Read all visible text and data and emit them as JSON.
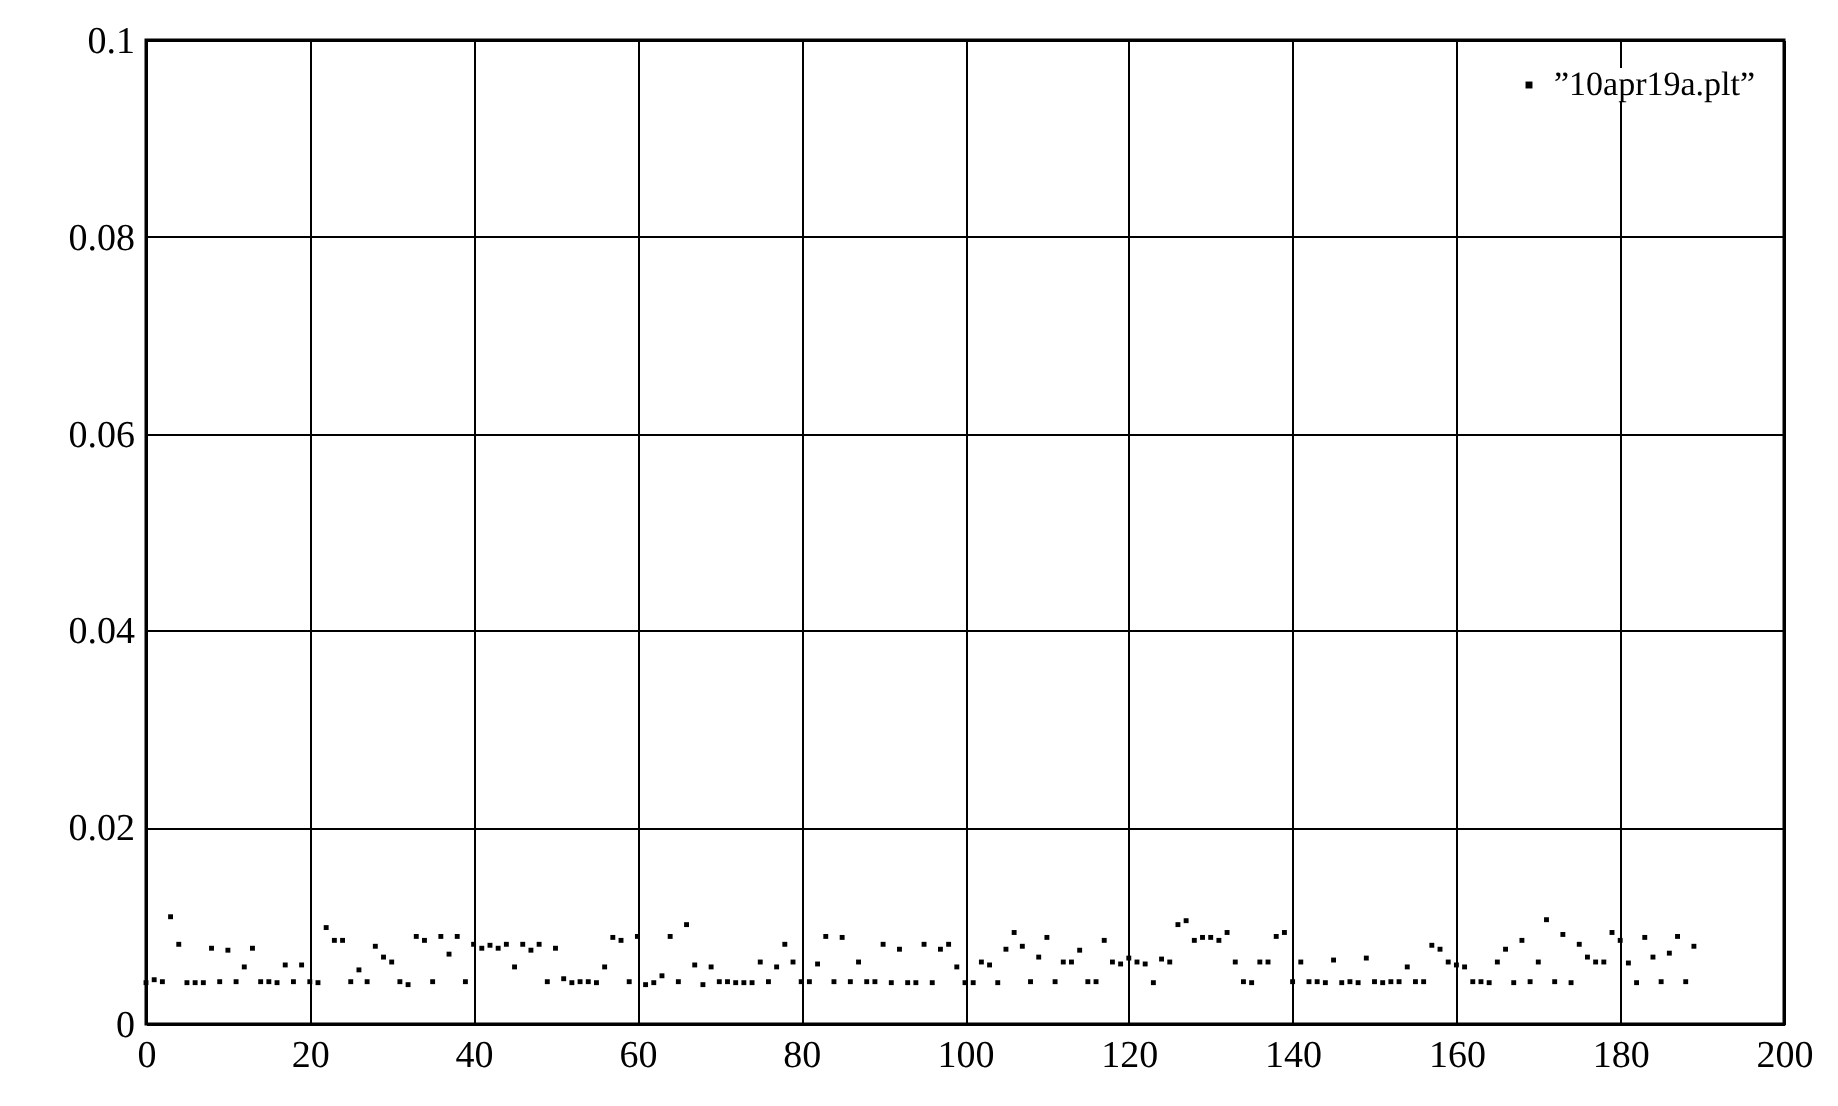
{
  "chart_data": {
    "type": "scatter",
    "x": [
      0,
      1,
      2,
      3,
      4,
      5,
      6,
      7,
      8,
      9,
      10,
      11,
      12,
      13,
      14,
      15,
      16,
      17,
      18,
      19,
      20,
      21,
      22,
      23,
      24,
      25,
      26,
      27,
      28,
      29,
      30,
      31,
      32,
      33,
      34,
      35,
      36,
      37,
      38,
      39,
      40,
      41,
      42,
      43,
      44,
      45,
      46,
      47,
      48,
      49,
      50,
      51,
      52,
      53,
      54,
      55,
      56,
      57,
      58,
      59,
      60,
      61,
      62,
      63,
      64,
      65,
      66,
      67,
      68,
      69,
      70,
      71,
      72,
      73,
      74,
      75,
      76,
      77,
      78,
      79,
      80,
      81,
      82,
      83,
      84,
      85,
      86,
      87,
      88,
      89,
      90,
      91,
      92,
      93,
      94,
      95,
      96,
      97,
      98,
      99,
      100,
      101,
      102,
      103,
      104,
      105,
      106,
      107,
      108,
      109,
      110,
      111,
      112,
      113,
      114,
      115,
      116,
      117,
      118,
      119,
      120,
      121,
      122,
      123,
      124,
      125,
      126,
      127,
      128,
      129,
      130,
      131,
      132,
      133,
      134,
      135,
      136,
      137,
      138,
      139,
      140,
      141,
      142,
      143,
      144,
      145,
      146,
      147,
      148,
      149,
      150,
      151,
      152,
      153,
      154,
      155,
      156,
      157,
      158,
      159,
      160,
      161,
      162,
      163,
      164,
      165,
      166,
      167,
      168,
      169,
      170,
      171,
      172,
      173,
      174,
      175,
      176,
      177,
      178,
      179,
      180,
      181,
      182,
      183,
      184,
      185,
      186,
      187,
      188,
      189
    ],
    "series": [
      {
        "name": "”10apr19a.plt”",
        "color": "#000000",
        "values": [
          0.0042,
          0.0045,
          0.0043,
          0.0109,
          0.0081,
          0.0042,
          0.0042,
          0.0042,
          0.0077,
          0.0043,
          0.0075,
          0.0043,
          0.0058,
          0.0077,
          0.0043,
          0.0043,
          0.0042,
          0.006,
          0.0043,
          0.006,
          0.0043,
          0.0042,
          0.0098,
          0.0085,
          0.0085,
          0.0043,
          0.0055,
          0.0043,
          0.0079,
          0.0068,
          0.0063,
          0.0043,
          0.004,
          0.0089,
          0.0085,
          0.0043,
          0.0089,
          0.0071,
          0.0089,
          0.0043,
          0.0081,
          0.0077,
          0.008,
          0.0077,
          0.0081,
          0.0058,
          0.0081,
          0.0075,
          0.0081,
          0.0043,
          0.0077,
          0.0046,
          0.0042,
          0.0043,
          0.0043,
          0.0042,
          0.0058,
          0.0088,
          0.0085,
          0.0043,
          0.0089,
          0.004,
          0.0042,
          0.0049,
          0.0089,
          0.0043,
          0.0101,
          0.006,
          0.004,
          0.0058,
          0.0043,
          0.0043,
          0.0042,
          0.0042,
          0.0042,
          0.0063,
          0.0043,
          0.0058,
          0.0081,
          0.0063,
          0.0043,
          0.0043,
          0.0061,
          0.0089,
          0.0043,
          0.0088,
          0.0043,
          0.0063,
          0.0043,
          0.0043,
          0.0081,
          0.0042,
          0.0076,
          0.0042,
          0.0042,
          0.0081,
          0.0042,
          0.0076,
          0.0081,
          0.0058,
          0.0042,
          0.0042,
          0.0063,
          0.006,
          0.0042,
          0.0076,
          0.0093,
          0.0079,
          0.0043,
          0.0068,
          0.0088,
          0.0043,
          0.0063,
          0.0063,
          0.0075,
          0.0043,
          0.0043,
          0.0085,
          0.0063,
          0.0061,
          0.0067,
          0.0063,
          0.0061,
          0.0042,
          0.0066,
          0.0063,
          0.0101,
          0.0105,
          0.0085,
          0.0088,
          0.0088,
          0.0085,
          0.0093,
          0.0063,
          0.0043,
          0.0042,
          0.0063,
          0.0063,
          0.0089,
          0.0093,
          0.0043,
          0.0063,
          0.0043,
          0.0043,
          0.0042,
          0.0065,
          0.0042,
          0.0043,
          0.0042,
          0.0067,
          0.0043,
          0.0042,
          0.0043,
          0.0043,
          0.0058,
          0.0043,
          0.0043,
          0.008,
          0.0076,
          0.0063,
          0.006,
          0.0058,
          0.0043,
          0.0043,
          0.0042,
          0.0063,
          0.0076,
          0.0042,
          0.0085,
          0.0043,
          0.0063,
          0.0106,
          0.0043,
          0.0091,
          0.0042,
          0.0081,
          0.0068,
          0.0063,
          0.0063,
          0.0093,
          0.0085,
          0.0062,
          0.0042,
          0.0088,
          0.0068,
          0.0043,
          0.0072,
          0.0089,
          0.0043,
          0.0079
        ]
      }
    ],
    "xlim": [
      0,
      200
    ],
    "xticks": [
      0,
      20,
      40,
      60,
      80,
      100,
      120,
      140,
      160,
      180,
      200
    ],
    "ylim": [
      0,
      0.1
    ],
    "yticks": [
      0,
      0.02,
      0.04,
      0.06,
      0.08,
      0.1
    ],
    "grid": true,
    "legend": "top right",
    "marker": "square"
  }
}
